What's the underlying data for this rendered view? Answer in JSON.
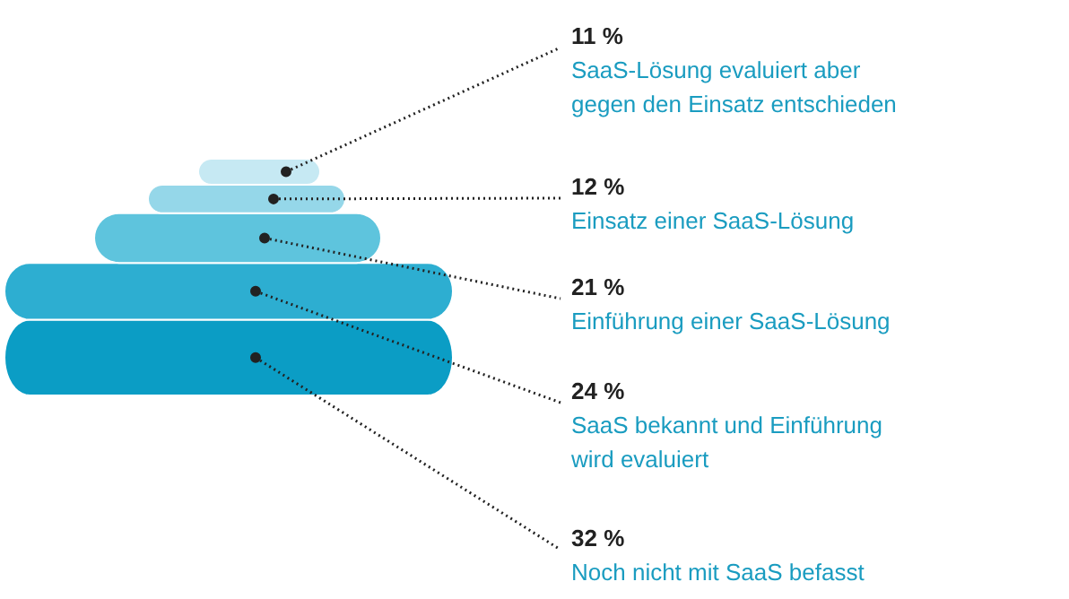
{
  "chart_data": {
    "type": "other",
    "categories": [
      "SaaS-Lösung evaluiert aber\ngegen den Einsatz entschieden",
      "Einsatz einer SaaS-Lösung",
      "Einführung einer SaaS-Lösung",
      "SaaS bekannt und Einführung\nwird evaluiert",
      "Noch nicht mit SaaS befasst"
    ],
    "values": [
      11,
      12,
      21,
      24,
      32
    ],
    "colors": [
      "#c6e9f3",
      "#95d7e9",
      "#5ec4dd",
      "#2daed1",
      "#0b9dc5"
    ],
    "value_labels": [
      "11 %",
      "12 %",
      "21 %",
      "24 %",
      "32 %"
    ]
  }
}
